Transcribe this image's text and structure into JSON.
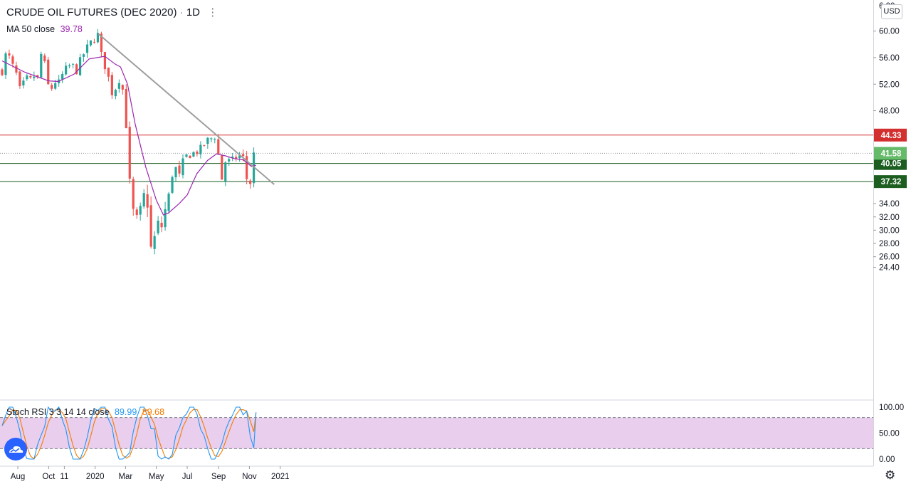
{
  "header": {
    "symbol": "CRUDE OIL FUTURES (DEC 2020)",
    "interval": "1D",
    "currency": "USD"
  },
  "indicators": {
    "ma_label": "MA 50 close",
    "ma_value": "39.78",
    "stoch_label": "Stoch RSI 3 3 14 14 close",
    "stoch_k": "89.99",
    "stoch_d": "89.68"
  },
  "colors": {
    "up": "#26a69a",
    "down": "#ef5350",
    "ma": "#9c27b0",
    "stoch_k": "#2196f3",
    "stoch_d": "#f57c00",
    "stoch_band": "#e1bee7",
    "resistance": "#d32f2f",
    "support": "#1b5e20",
    "trendline": "#9e9e9e",
    "price_tag": "#66bb6a"
  },
  "chart_data": {
    "type": "candlestick",
    "price_axis": {
      "ticks": [
        "24.40",
        "26.00",
        "28.00",
        "30.00",
        "32.00",
        "34.00",
        "37.32",
        "40.05",
        "44.33",
        "48.00",
        "52.00",
        "56.00",
        "60.00"
      ],
      "top_partial": "6_.00"
    },
    "x_axis": {
      "ticks": [
        "Aug",
        "Oct",
        "11",
        "2020",
        "Mar",
        "May",
        "Jul",
        "Sep",
        "Nov",
        "2021"
      ]
    },
    "horizontal_levels": [
      {
        "label": "44.33",
        "value": 44.33,
        "role": "resistance"
      },
      {
        "label": "40.05",
        "value": 40.05,
        "role": "support"
      },
      {
        "label": "37.32",
        "value": 37.32,
        "role": "support"
      }
    ],
    "last_price": {
      "label": "41.58",
      "value": 41.58
    },
    "trendline": {
      "from": {
        "date": "2020-01-07",
        "price": 59.6
      },
      "to": {
        "date": "2020-12-20",
        "price": 36.9
      }
    },
    "ohlc_path": [
      [
        "2019-07-01",
        54.0
      ],
      [
        "2019-07-10",
        57.0
      ],
      [
        "2019-07-20",
        55.0
      ],
      [
        "2019-08-01",
        53.0
      ],
      [
        "2019-08-07",
        50.3
      ],
      [
        "2019-08-15",
        53.0
      ],
      [
        "2019-08-25",
        52.5
      ],
      [
        "2019-09-05",
        53.5
      ],
      [
        "2019-09-13",
        52.0
      ],
      [
        "2019-09-16",
        56.5
      ],
      [
        "2019-09-23",
        55.0
      ],
      [
        "2019-10-03",
        50.5
      ],
      [
        "2019-10-12",
        52.5
      ],
      [
        "2019-10-20",
        52.0
      ],
      [
        "2019-11-01",
        54.0
      ],
      [
        "2019-11-15",
        55.0
      ],
      [
        "2019-11-25",
        54.0
      ],
      [
        "2019-12-05",
        56.0
      ],
      [
        "2019-12-20",
        58.0
      ],
      [
        "2020-01-07",
        59.5
      ],
      [
        "2020-01-14",
        56.0
      ],
      [
        "2020-01-24",
        54.0
      ],
      [
        "2020-02-04",
        50.5
      ],
      [
        "2020-02-14",
        52.0
      ],
      [
        "2020-02-21",
        53.5
      ],
      [
        "2020-02-26",
        50.0
      ],
      [
        "2020-03-02",
        46.0
      ],
      [
        "2020-03-06",
        44.0
      ],
      [
        "2020-03-09",
        37.5
      ],
      [
        "2020-03-16",
        33.0
      ],
      [
        "2020-03-20",
        28.5
      ],
      [
        "2020-03-24",
        32.0
      ],
      [
        "2020-04-01",
        33.0
      ],
      [
        "2020-04-08",
        36.0
      ],
      [
        "2020-04-15",
        33.5
      ],
      [
        "2020-04-21",
        26.5
      ],
      [
        "2020-04-28",
        29.0
      ],
      [
        "2020-05-05",
        31.0
      ],
      [
        "2020-05-10",
        30.0
      ],
      [
        "2020-05-15",
        32.0
      ],
      [
        "2020-05-25",
        35.0
      ],
      [
        "2020-06-05",
        40.0
      ],
      [
        "2020-06-15",
        38.0
      ],
      [
        "2020-06-25",
        41.0
      ],
      [
        "2020-07-10",
        41.5
      ],
      [
        "2020-07-25",
        42.0
      ],
      [
        "2020-08-10",
        43.5
      ],
      [
        "2020-08-26",
        44.2
      ],
      [
        "2020-09-08",
        37.5
      ],
      [
        "2020-09-15",
        40.5
      ],
      [
        "2020-09-25",
        40.3
      ],
      [
        "2020-10-05",
        40.9
      ],
      [
        "2020-10-16",
        41.3
      ],
      [
        "2020-10-23",
        40.5
      ],
      [
        "2020-10-29",
        36.0
      ],
      [
        "2020-11-02",
        36.5
      ],
      [
        "2020-11-05",
        39.5
      ],
      [
        "2020-11-09",
        41.5
      ],
      [
        "2020-11-12",
        41.2
      ],
      [
        "2020-11-14",
        41.58
      ]
    ],
    "ma50_path": [
      [
        "2019-07-01",
        55.5
      ],
      [
        "2019-08-15",
        53.8
      ],
      [
        "2019-10-01",
        52.5
      ],
      [
        "2019-10-20",
        52.4
      ],
      [
        "2019-11-20",
        53.5
      ],
      [
        "2019-12-20",
        55.8
      ],
      [
        "2020-01-20",
        56.2
      ],
      [
        "2020-02-10",
        55.0
      ],
      [
        "2020-02-20",
        54.6
      ],
      [
        "2020-03-05",
        52.0
      ],
      [
        "2020-03-20",
        46.0
      ],
      [
        "2020-04-10",
        39.5
      ],
      [
        "2020-05-01",
        34.5
      ],
      [
        "2020-05-15",
        32.3
      ],
      [
        "2020-05-25",
        32.6
      ],
      [
        "2020-06-15",
        34.0
      ],
      [
        "2020-07-01",
        35.3
      ],
      [
        "2020-07-20",
        38.5
      ],
      [
        "2020-08-10",
        40.5
      ],
      [
        "2020-08-28",
        41.5
      ],
      [
        "2020-09-15",
        41.2
      ],
      [
        "2020-10-01",
        40.8
      ],
      [
        "2020-10-20",
        40.6
      ],
      [
        "2020-11-05",
        39.6
      ],
      [
        "2020-11-14",
        39.78
      ]
    ],
    "stoch_rsi": {
      "levels": [
        80,
        20
      ],
      "k_last": 89.99,
      "d_last": 89.68
    }
  }
}
